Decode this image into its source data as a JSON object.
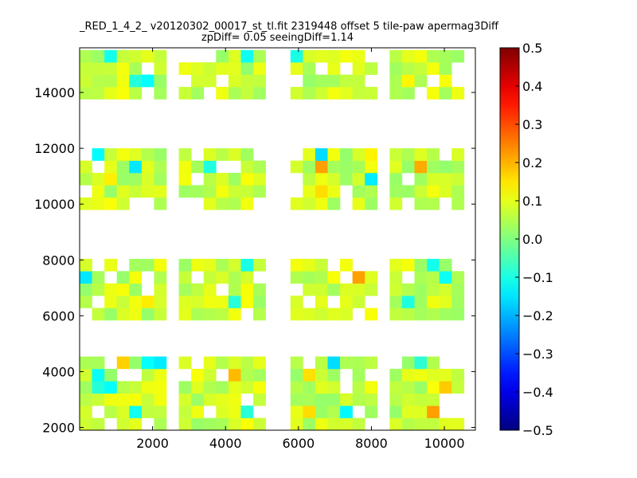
{
  "chart_data": {
    "type": "heatmap",
    "title": "_RED_1_4_2_ v20120302_00017_st_tl.fit 2319448 offset 5 tile-paw apermag3Diff",
    "subtitle": "zpDiff= 0.05 seeingDiff=1.14",
    "xlabel": "",
    "ylabel": "",
    "xlim": [
      0,
      10850
    ],
    "ylim": [
      1900,
      15600
    ],
    "xticks": [
      "2000",
      "4000",
      "6000",
      "8000",
      "10000"
    ],
    "yticks": [
      "2000",
      "4000",
      "6000",
      "8000",
      "10000",
      "12000",
      "14000"
    ],
    "colorbar": {
      "colormap": "jet",
      "vmin": -0.5,
      "vmax": 0.5,
      "ticks": [
        "0.5",
        "0.4",
        "0.3",
        "0.2",
        "0.1",
        "0.0",
        "−0.1",
        "−0.2",
        "−0.3",
        "−0.4",
        "−0.5"
      ]
    },
    "cell_size": [
      340,
      440
    ],
    "column_groups": [
      {
        "x_start": 0,
        "cols": 7
      },
      {
        "x_start": 2720,
        "cols": 7
      },
      {
        "x_start": 5780,
        "cols": 7
      },
      {
        "x_start": 8500,
        "cols": 7
      }
    ],
    "row_groups": [
      {
        "y_start": 1900,
        "rows": 6
      },
      {
        "y_start": 5840,
        "rows": 5
      },
      {
        "y_start": 9800,
        "rows": 5
      },
      {
        "y_start": 13760,
        "rows": 4
      }
    ],
    "grid": false,
    "legend": "none"
  },
  "colors": {
    "background": "#ffffff",
    "axes": "#000000"
  }
}
